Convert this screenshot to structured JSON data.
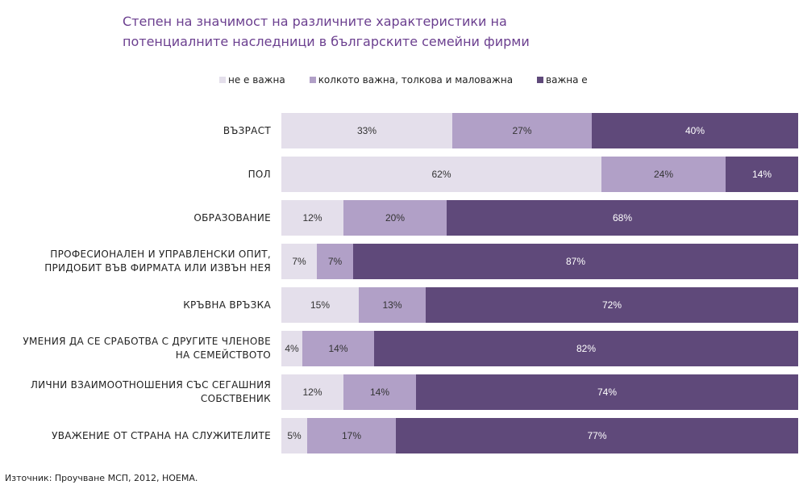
{
  "title_line1": "Степен на значимост на различните характеристики на",
  "title_line2": "потенциалните наследници в българските семейни фирми",
  "source": "Източник: Проучване МСП, 2012, НОЕМА.",
  "colors": {
    "not_important": "#e4dfeb",
    "somewhat": "#b1a0c7",
    "important": "#5f497a"
  },
  "chart_data": {
    "type": "bar",
    "orientation": "horizontal",
    "stacked": "percent",
    "categories": [
      "ВЪЗРАСТ",
      "ПОЛ",
      "ОБРАЗОВАНИЕ",
      "ПРОФЕСИОНАЛЕН И УПРАВЛЕНСКИ ОПИТ, ПРИДОБИТ ВЪВ ФИРМАТА ИЛИ ИЗВЪН НЕЯ",
      "КРЪВНА ВРЪЗКА",
      "УМЕНИЯ ДА СЕ СРАБОТВА С ДРУГИТЕ ЧЛЕНОВЕ НА СЕМЕЙСТВОТО",
      "ЛИЧНИ ВЗАИМООТНОШЕНИЯ СЪС СЕГАШНИЯ СОБСТВЕНИК",
      "УВАЖЕНИЕ ОТ СТРАНА НА СЛУЖИТЕЛИТЕ"
    ],
    "category_lines": [
      [
        "ВЪЗРАСТ"
      ],
      [
        "ПОЛ"
      ],
      [
        "ОБРАЗОВАНИЕ"
      ],
      [
        "ПРОФЕСИОНАЛЕН И УПРАВЛЕНСКИ ОПИТ,",
        "ПРИДОБИТ ВЪВ ФИРМАТА ИЛИ ИЗВЪН НЕЯ"
      ],
      [
        "КРЪВНА ВРЪЗКА"
      ],
      [
        "УМЕНИЯ ДА СЕ СРАБОТВА С ДРУГИТЕ ЧЛЕНОВЕ",
        "НА СЕМЕЙСТВОТО"
      ],
      [
        "ЛИЧНИ ВЗАИМООТНОШЕНИЯ СЪС СЕГАШНИЯ",
        "СОБСТВЕНИК"
      ],
      [
        "УВАЖЕНИЕ ОТ СТРАНА НА СЛУЖИТЕЛИТЕ"
      ]
    ],
    "series": [
      {
        "name": "не е важна",
        "color": "#e4dfeb",
        "label_color": "#333333",
        "values": [
          33,
          62,
          12,
          7,
          15,
          4,
          12,
          5
        ]
      },
      {
        "name": "колкото важна, толкова и маловажна",
        "color": "#b1a0c7",
        "label_color": "#333333",
        "values": [
          27,
          24,
          20,
          7,
          13,
          14,
          14,
          17
        ]
      },
      {
        "name": "важна е",
        "color": "#5f497a",
        "label_color": "#ffffff",
        "values": [
          40,
          14,
          68,
          87,
          72,
          82,
          74,
          77
        ]
      }
    ],
    "xlim": [
      0,
      100
    ],
    "legend_position": "top",
    "grid": false,
    "value_suffix": "%"
  }
}
